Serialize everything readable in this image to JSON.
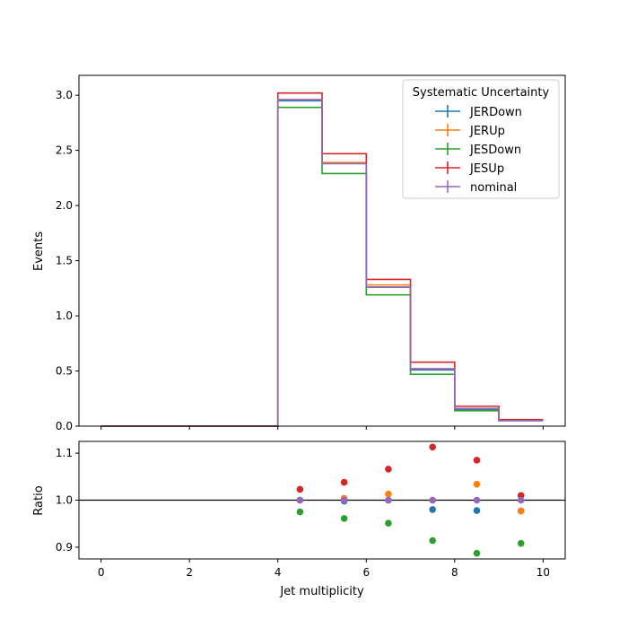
{
  "chart_data": [
    {
      "type": "step",
      "ylabel": "Events",
      "xlim": [
        -0.5,
        10.5
      ],
      "ylim": [
        0,
        3.18
      ],
      "yticks": [
        0.0,
        0.5,
        1.0,
        1.5,
        2.0,
        2.5,
        3.0
      ],
      "ytick_labels": [
        "0.0",
        "0.5",
        "1.0",
        "1.5",
        "2.0",
        "2.5",
        "3.0"
      ],
      "bin_edges": [
        0,
        1,
        2,
        3,
        4,
        5,
        6,
        7,
        8,
        9,
        10
      ],
      "legend": {
        "title": "Systematic Uncertainty",
        "placement": "top-right"
      },
      "series": [
        {
          "name": "JERDown",
          "color": "#1f77b4",
          "values": [
            0,
            0,
            0,
            0,
            2.95,
            2.38,
            1.26,
            0.51,
            0.15,
            0.05
          ]
        },
        {
          "name": "JERUp",
          "color": "#ff7f0e",
          "values": [
            0,
            0,
            0,
            0,
            2.96,
            2.39,
            1.28,
            0.52,
            0.16,
            0.05
          ]
        },
        {
          "name": "JESDown",
          "color": "#2ca02c",
          "values": [
            0,
            0,
            0,
            0,
            2.89,
            2.29,
            1.19,
            0.47,
            0.14,
            0.05
          ]
        },
        {
          "name": "JESUp",
          "color": "#d62728",
          "values": [
            0,
            0,
            0,
            0,
            3.02,
            2.47,
            1.33,
            0.58,
            0.18,
            0.06
          ]
        },
        {
          "name": "nominal",
          "color": "#9467bd",
          "values": [
            0,
            0,
            0,
            0,
            2.96,
            2.38,
            1.26,
            0.52,
            0.16,
            0.05
          ]
        }
      ]
    },
    {
      "type": "scatter",
      "xlabel": "Jet multiplicity",
      "ylabel": "Ratio",
      "xlim": [
        -0.5,
        10.5
      ],
      "ylim": [
        0.875,
        1.125
      ],
      "xticks": [
        0,
        2,
        4,
        6,
        8,
        10
      ],
      "xtick_labels": [
        "0",
        "2",
        "4",
        "6",
        "8",
        "10"
      ],
      "yticks": [
        0.9,
        1.0,
        1.1
      ],
      "ytick_labels": [
        "0.9",
        "1.0",
        "1.1"
      ],
      "reference_line": 1.0,
      "x": [
        4.5,
        5.5,
        6.5,
        7.5,
        8.5,
        9.5
      ],
      "series": [
        {
          "name": "JERDown",
          "color": "#1f77b4",
          "values": [
            1.0,
            0.998,
            1.0,
            0.98,
            0.978,
            0.977
          ]
        },
        {
          "name": "JERUp",
          "color": "#ff7f0e",
          "values": [
            1.0,
            1.004,
            1.013,
            1.0,
            1.034,
            0.977
          ]
        },
        {
          "name": "JESDown",
          "color": "#2ca02c",
          "values": [
            0.975,
            0.961,
            0.951,
            0.914,
            0.887,
            0.908
          ]
        },
        {
          "name": "JESUp",
          "color": "#d62728",
          "values": [
            1.023,
            1.038,
            1.066,
            1.113,
            1.085,
            1.01
          ]
        },
        {
          "name": "nominal",
          "color": "#9467bd",
          "values": [
            1.0,
            1.0,
            1.0,
            1.0,
            1.0,
            1.0
          ]
        }
      ]
    }
  ]
}
